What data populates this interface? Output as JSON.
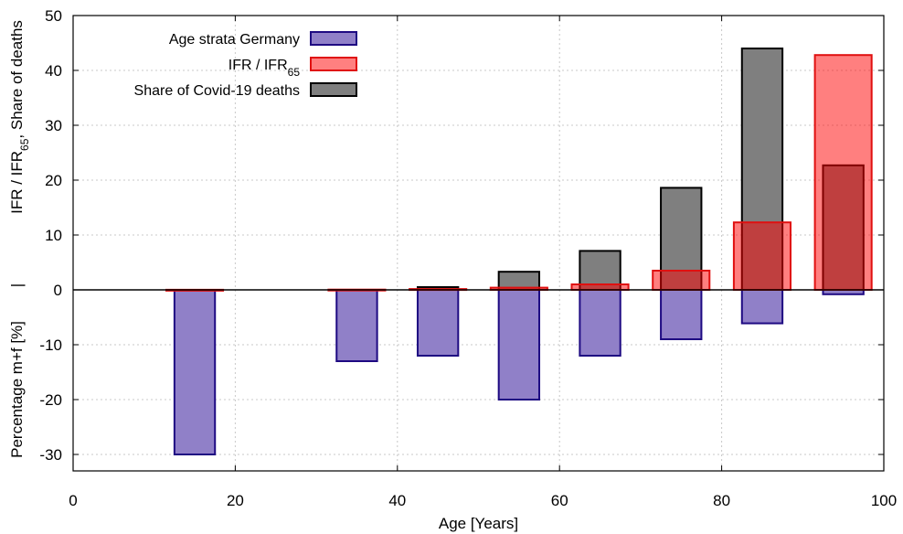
{
  "chart_data": {
    "type": "bar",
    "xlabel": "Age [Years]",
    "ylabel_upper": {
      "main": "IFR / IFR",
      "sub": "65",
      "tail": ",   Share of deaths"
    },
    "ylabel_lower": "Percentage m+f [%]",
    "ylabel_separator": "|",
    "xlim": [
      0,
      100
    ],
    "ylim": [
      -33,
      50
    ],
    "xticks": [
      0,
      20,
      40,
      60,
      80,
      100
    ],
    "yticks": [
      -30,
      -20,
      -10,
      0,
      10,
      20,
      30,
      40,
      50
    ],
    "grid": true,
    "legend_position": "top-left",
    "legend": [
      {
        "label": "Age strata Germany",
        "sub": "",
        "fill": "#9080c8",
        "stroke": "#1e0a82"
      },
      {
        "label": "IFR / IFR",
        "sub": "65",
        "fill": "#ff8080",
        "stroke": "#e01010"
      },
      {
        "label": "Share of Covid-19 deaths",
        "sub": "",
        "fill": "#7f7f7f",
        "stroke": "#000000"
      }
    ],
    "series": [
      {
        "name": "Share of Covid-19 deaths",
        "fill": "#7f7f7f",
        "stroke": "#000000",
        "bars": [
          {
            "x0": 42.5,
            "x1": 47.5,
            "value": 0.5
          },
          {
            "x0": 52.5,
            "x1": 57.5,
            "value": 3.3
          },
          {
            "x0": 62.5,
            "x1": 67.5,
            "value": 7.1
          },
          {
            "x0": 72.5,
            "x1": 77.5,
            "value": 18.6
          },
          {
            "x0": 82.5,
            "x1": 87.5,
            "value": 44.0
          },
          {
            "x0": 92.5,
            "x1": 97.5,
            "value": 22.7
          }
        ]
      },
      {
        "name": "Age strata Germany",
        "fill": "#9080c8",
        "stroke": "#1e0a82",
        "bars": [
          {
            "x0": 12.5,
            "x1": 17.5,
            "value": -30
          },
          {
            "x0": 32.5,
            "x1": 37.5,
            "value": -13
          },
          {
            "x0": 42.5,
            "x1": 47.5,
            "value": -12
          },
          {
            "x0": 52.5,
            "x1": 57.5,
            "value": -20
          },
          {
            "x0": 62.5,
            "x1": 67.5,
            "value": -12
          },
          {
            "x0": 72.5,
            "x1": 77.5,
            "value": -9
          },
          {
            "x0": 82.5,
            "x1": 87.5,
            "value": -6.1
          },
          {
            "x0": 92.5,
            "x1": 97.5,
            "value": -0.8
          }
        ]
      },
      {
        "name": "IFR / IFR65",
        "fill": "#ff0000",
        "fill_opacity": 0.5,
        "stroke": "#e01010",
        "bars": [
          {
            "x0": 11.5,
            "x1": 18.5,
            "value": 0.02
          },
          {
            "x0": 31.5,
            "x1": 38.5,
            "value": 0.05
          },
          {
            "x0": 41.5,
            "x1": 48.5,
            "value": 0.15
          },
          {
            "x0": 51.5,
            "x1": 58.5,
            "value": 0.4
          },
          {
            "x0": 61.5,
            "x1": 68.5,
            "value": 1.0
          },
          {
            "x0": 71.5,
            "x1": 78.5,
            "value": 3.5
          },
          {
            "x0": 81.5,
            "x1": 88.5,
            "value": 12.3
          },
          {
            "x0": 91.5,
            "x1": 98.5,
            "value": 42.8
          }
        ]
      }
    ]
  }
}
